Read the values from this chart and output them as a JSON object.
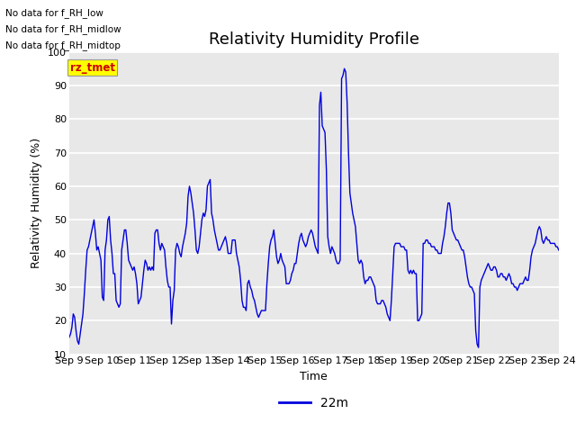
{
  "title": "Relativity Humidity Profile",
  "ylabel": "Relativity Humidity (%)",
  "xlabel": "Time",
  "ylim": [
    10,
    100
  ],
  "yticks": [
    10,
    20,
    30,
    40,
    50,
    60,
    70,
    80,
    90,
    100
  ],
  "xlim": [
    0,
    360
  ],
  "xtick_labels": [
    "Sep 9",
    "Sep 10",
    "Sep 11",
    "Sep 12",
    "Sep 13",
    "Sep 14",
    "Sep 15",
    "Sep 16",
    "Sep 17",
    "Sep 18",
    "Sep 19",
    "Sep 20",
    "Sep 21",
    "Sep 22",
    "Sep 23",
    "Sep 24"
  ],
  "xtick_positions": [
    0,
    24,
    48,
    72,
    96,
    120,
    144,
    168,
    192,
    216,
    240,
    264,
    288,
    312,
    336,
    360
  ],
  "line_color": "#0000dd",
  "legend_label": "22m",
  "no_data_texts": [
    "No data for f_RH_low",
    "No data for f_RH_midlow",
    "No data for f_RH_midtop"
  ],
  "legend_box_color": "#ffff00",
  "legend_box_text": "rz_tmet",
  "legend_box_text_color": "#cc0000",
  "fig_facecolor": "#ffffff",
  "plot_bg_color": "#e8e8e8",
  "grid_color": "#ffffff",
  "title_fontsize": 13,
  "axis_fontsize": 9,
  "tick_fontsize": 8,
  "y_values": [
    15,
    16,
    18,
    22,
    21,
    17,
    14,
    13,
    16,
    19,
    22,
    28,
    35,
    41,
    42,
    44,
    46,
    48,
    50,
    46,
    41,
    42,
    40,
    38,
    27,
    26,
    41,
    44,
    50,
    51,
    44,
    40,
    34,
    34,
    26,
    25,
    24,
    25,
    41,
    44,
    47,
    47,
    43,
    38,
    37,
    36,
    35,
    36,
    34,
    31,
    25,
    26,
    27,
    31,
    35,
    38,
    37,
    35,
    36,
    35,
    36,
    35,
    46,
    47,
    47,
    43,
    41,
    43,
    42,
    41,
    36,
    32,
    30,
    30,
    19,
    26,
    29,
    41,
    43,
    42,
    40,
    39,
    42,
    44,
    46,
    49,
    57,
    60,
    58,
    55,
    52,
    47,
    41,
    40,
    42,
    46,
    50,
    52,
    51,
    53,
    60,
    61,
    62,
    52,
    50,
    47,
    45,
    43,
    41,
    41,
    42,
    43,
    44,
    45,
    43,
    40,
    40,
    40,
    44,
    44,
    44,
    40,
    38,
    36,
    32,
    26,
    24,
    24,
    23,
    31,
    32,
    30,
    29,
    27,
    26,
    24,
    22,
    21,
    22,
    23,
    23,
    23,
    23,
    31,
    37,
    42,
    44,
    45,
    47,
    43,
    39,
    37,
    38,
    40,
    38,
    37,
    36,
    31,
    31,
    31,
    32,
    34,
    35,
    37,
    37,
    40,
    43,
    45,
    46,
    44,
    43,
    42,
    43,
    45,
    46,
    47,
    46,
    44,
    42,
    41,
    40,
    84,
    88,
    78,
    77,
    76,
    65,
    45,
    42,
    40,
    42,
    41,
    40,
    38,
    37,
    37,
    38,
    92,
    93,
    95,
    94,
    85,
    70,
    58,
    55,
    52,
    50,
    48,
    43,
    38,
    37,
    38,
    37,
    33,
    31,
    32,
    32,
    33,
    33,
    32,
    31,
    30,
    26,
    25,
    25,
    25,
    26,
    26,
    25,
    24,
    22,
    21,
    20,
    26,
    34,
    42,
    43,
    43,
    43,
    43,
    42,
    42,
    42,
    41,
    41,
    35,
    34,
    35,
    34,
    35,
    34,
    34,
    20,
    20,
    21,
    22,
    43,
    43,
    44,
    44,
    43,
    43,
    42,
    42,
    42,
    41,
    41,
    40,
    40,
    40,
    43,
    45,
    48,
    52,
    55,
    55,
    52,
    47,
    46,
    45,
    44,
    44,
    43,
    42,
    41,
    41,
    39,
    36,
    33,
    31,
    30,
    30,
    29,
    28,
    17,
    13,
    12,
    30,
    32,
    33,
    34,
    35,
    36,
    37,
    36,
    35,
    35,
    36,
    36,
    35,
    33,
    33,
    34,
    34,
    33,
    33,
    32,
    33,
    34,
    33,
    31,
    31,
    30,
    30,
    29,
    30,
    31,
    31,
    31,
    32,
    33,
    32,
    32,
    35,
    39,
    41,
    42,
    43,
    45,
    47,
    48,
    47,
    44,
    43,
    44,
    45,
    44,
    44,
    43,
    43,
    43,
    43,
    42,
    42,
    41
  ]
}
